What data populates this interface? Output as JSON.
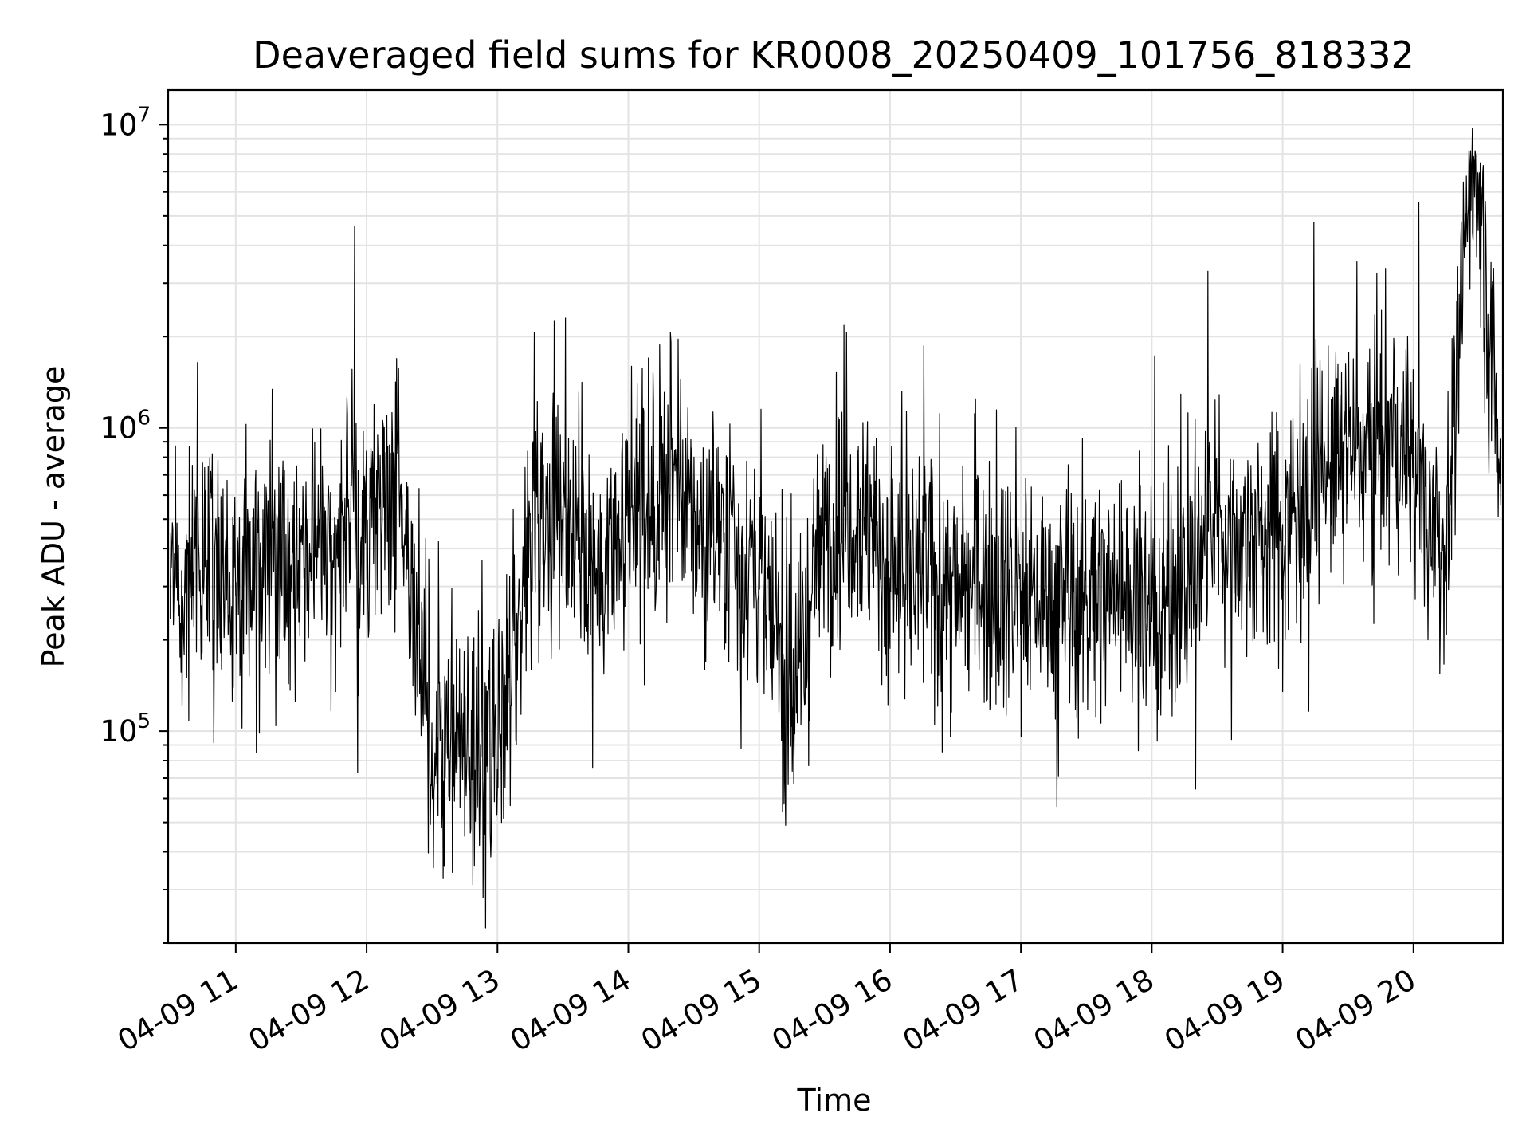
{
  "chart_data": {
    "type": "line",
    "title": "Deaveraged field sums for KR0008_20250409_101756_818332",
    "xlabel": "Time",
    "ylabel": "Peak ADU - average",
    "yscale": "log",
    "ylim": [
      20000,
      13000000
    ],
    "xlim": [
      "2025-04-09 10:29",
      "2025-04-09 20:41"
    ],
    "grid": true,
    "line_color": "#000000",
    "grid_color": "#e3e3e3",
    "x_ticks": [
      {
        "value": "2025-04-09 11:00",
        "label": "04-09 11"
      },
      {
        "value": "2025-04-09 12:00",
        "label": "04-09 12"
      },
      {
        "value": "2025-04-09 13:00",
        "label": "04-09 13"
      },
      {
        "value": "2025-04-09 14:00",
        "label": "04-09 14"
      },
      {
        "value": "2025-04-09 15:00",
        "label": "04-09 15"
      },
      {
        "value": "2025-04-09 16:00",
        "label": "04-09 16"
      },
      {
        "value": "2025-04-09 17:00",
        "label": "04-09 17"
      },
      {
        "value": "2025-04-09 18:00",
        "label": "04-09 18"
      },
      {
        "value": "2025-04-09 19:00",
        "label": "04-09 19"
      },
      {
        "value": "2025-04-09 20:00",
        "label": "04-09 20"
      }
    ],
    "y_ticks": [
      {
        "value": 100000,
        "base": "10",
        "exp": "5"
      },
      {
        "value": 1000000,
        "base": "10",
        "exp": "6"
      },
      {
        "value": 10000000,
        "base": "10",
        "exp": "7"
      }
    ],
    "series": [
      {
        "x": [
          "2025-04-09 10:30",
          "2025-04-09 10:45",
          "2025-04-09 11:00",
          "2025-04-09 11:15",
          "2025-04-09 11:30",
          "2025-04-09 11:45",
          "2025-04-09 12:00",
          "2025-04-09 12:15",
          "2025-04-09 12:30",
          "2025-04-09 12:45",
          "2025-04-09 13:00",
          "2025-04-09 13:15",
          "2025-04-09 13:30",
          "2025-04-09 13:45",
          "2025-04-09 14:00",
          "2025-04-09 14:15",
          "2025-04-09 14:30",
          "2025-04-09 14:45",
          "2025-04-09 15:00",
          "2025-04-09 15:15",
          "2025-04-09 15:30",
          "2025-04-09 15:45",
          "2025-04-09 16:00",
          "2025-04-09 16:15",
          "2025-04-09 16:30",
          "2025-04-09 16:45",
          "2025-04-09 17:00",
          "2025-04-09 17:15",
          "2025-04-09 17:30",
          "2025-04-09 17:45",
          "2025-04-09 18:00",
          "2025-04-09 18:15",
          "2025-04-09 18:30",
          "2025-04-09 18:45",
          "2025-04-09 19:00",
          "2025-04-09 19:15",
          "2025-04-09 19:30",
          "2025-04-09 19:45",
          "2025-04-09 20:00",
          "2025-04-09 20:15",
          "2025-04-09 20:27",
          "2025-04-09 20:40"
        ],
        "values": [
          300000,
          420000,
          280000,
          350000,
          420000,
          450000,
          480000,
          600000,
          90000,
          80000,
          75000,
          450000,
          550000,
          330000,
          420000,
          600000,
          520000,
          450000,
          350000,
          120000,
          480000,
          550000,
          320000,
          330000,
          280000,
          320000,
          290000,
          270000,
          260000,
          310000,
          230000,
          320000,
          480000,
          420000,
          480000,
          700000,
          820000,
          870000,
          750000,
          380000,
          9700000,
          700000
        ]
      }
    ]
  }
}
